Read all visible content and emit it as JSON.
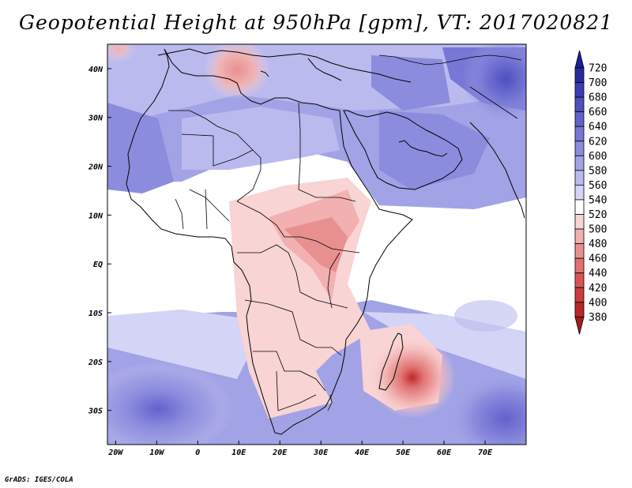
{
  "title": "Geopotential Height at 950hPa [gpm], VT: 2017020821",
  "credit": "GrADS: IGES/COLA",
  "map": {
    "lon_range": [
      -22,
      80
    ],
    "lat_range": [
      -37,
      45
    ],
    "lat_ticks": [
      {
        "lat": 40,
        "label": "40N"
      },
      {
        "lat": 30,
        "label": "30N"
      },
      {
        "lat": 20,
        "label": "20N"
      },
      {
        "lat": 10,
        "label": "10N"
      },
      {
        "lat": 0,
        "label": "EQ"
      },
      {
        "lat": -10,
        "label": "10S"
      },
      {
        "lat": -20,
        "label": "20S"
      },
      {
        "lat": -30,
        "label": "30S"
      }
    ],
    "lon_ticks": [
      {
        "lon": -20,
        "label": "20W"
      },
      {
        "lon": -10,
        "label": "10W"
      },
      {
        "lon": 0,
        "label": "0"
      },
      {
        "lon": 10,
        "label": "10E"
      },
      {
        "lon": 20,
        "label": "20E"
      },
      {
        "lon": 30,
        "label": "30E"
      },
      {
        "lon": 40,
        "label": "40E"
      },
      {
        "lon": 50,
        "label": "50E"
      },
      {
        "lon": 60,
        "label": "60E"
      },
      {
        "lon": 70,
        "label": "70E"
      }
    ]
  },
  "colorbar": {
    "levels": [
      720,
      700,
      680,
      660,
      640,
      620,
      600,
      580,
      560,
      540,
      520,
      500,
      480,
      460,
      440,
      420,
      400,
      380
    ],
    "colors": [
      "#2a2aa0",
      "#3c3cb4",
      "#4f4fc0",
      "#6262cc",
      "#7777d6",
      "#8c8cde",
      "#a2a2e6",
      "#babaee",
      "#d4d4f6",
      "#ffffff",
      "#f8d4d4",
      "#f2b0b0",
      "#e89090",
      "#e07272",
      "#d85454",
      "#cc3c3c",
      "#b82828"
    ],
    "top_arrow_color": "#1e1e96",
    "bottom_arrow_color": "#a01c1c"
  },
  "features": [
    {
      "name": "Madagascar high-center",
      "lon": 53,
      "lat": -24,
      "value": 400
    },
    {
      "name": "Algeria red patch",
      "lon": 9,
      "lat": 37,
      "value": 500
    },
    {
      "name": "South Atlantic low",
      "lon": -9,
      "lat": -32,
      "value": 640
    },
    {
      "name": "Central Asia low",
      "lon": 70,
      "lat": 38,
      "value": 660
    }
  ]
}
